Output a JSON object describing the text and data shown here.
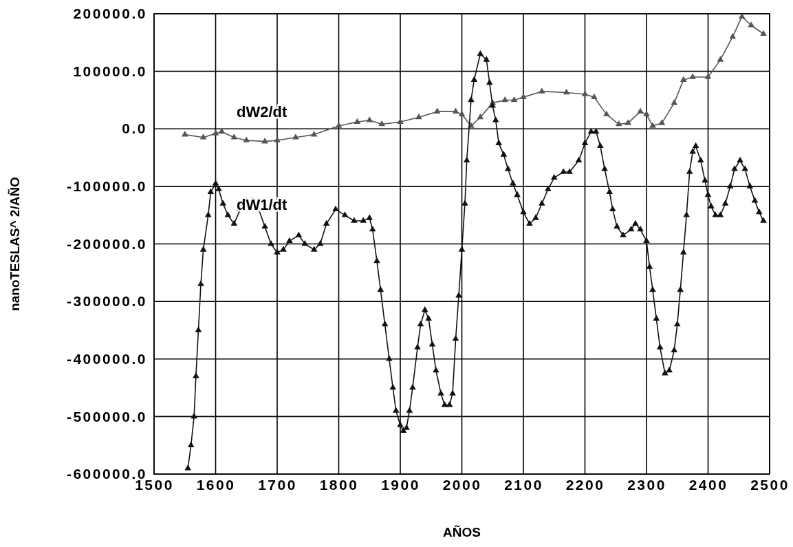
{
  "chart_data": {
    "type": "line",
    "xlabel": "AÑOS",
    "ylabel": "nanoTESLAS^ 2/AÑO",
    "xlim": [
      1500,
      2500
    ],
    "xticks": [
      1500,
      1600,
      1700,
      1800,
      1900,
      2000,
      2100,
      2200,
      2300,
      2400,
      2500
    ],
    "ylim": [
      -600000,
      200000
    ],
    "yticks": [
      {
        "value": -600000,
        "label": "-600000.0"
      },
      {
        "value": -500000,
        "label": "-500000.0"
      },
      {
        "value": -400000,
        "label": "-400000.0"
      },
      {
        "value": -300000,
        "label": "-300000.0"
      },
      {
        "value": -200000,
        "label": "-200000.0"
      },
      {
        "value": -100000,
        "label": "-100000.0"
      },
      {
        "value": 0,
        "label": "0.0"
      },
      {
        "value": 100000,
        "label": "100000.0"
      },
      {
        "value": 200000,
        "label": "200000.0"
      }
    ],
    "grid": true,
    "marker": "triangle",
    "line_style": "solid",
    "series": [
      {
        "name": "dW2/dt",
        "color": "#555555",
        "x": [
          1550,
          1580,
          1600,
          1610,
          1630,
          1650,
          1680,
          1700,
          1730,
          1760,
          1800,
          1830,
          1850,
          1870,
          1900,
          1930,
          1960,
          1990,
          2000,
          2015,
          2030,
          2050,
          2070,
          2085,
          2100,
          2130,
          2170,
          2200,
          2215,
          2235,
          2255,
          2270,
          2290,
          2300,
          2310,
          2325,
          2345,
          2360,
          2375,
          2400,
          2420,
          2440,
          2455,
          2470,
          2490
        ],
        "values": [
          -10000,
          -15000,
          -8000,
          -5000,
          -15000,
          -20000,
          -22000,
          -20000,
          -15000,
          -10000,
          5000,
          12000,
          15000,
          8000,
          12000,
          20000,
          30000,
          30000,
          25000,
          5000,
          20000,
          45000,
          50000,
          50000,
          55000,
          65000,
          63000,
          60000,
          55000,
          25000,
          8000,
          10000,
          30000,
          25000,
          5000,
          10000,
          45000,
          85000,
          90000,
          90000,
          120000,
          160000,
          195000,
          180000,
          165000
        ]
      },
      {
        "name": "dW1/dt",
        "color": "#111111",
        "x": [
          1555,
          1560,
          1565,
          1568,
          1572,
          1576,
          1580,
          1588,
          1592,
          1600,
          1605,
          1612,
          1620,
          1630,
          1640,
          1650,
          1660,
          1670,
          1680,
          1690,
          1700,
          1710,
          1720,
          1735,
          1745,
          1760,
          1770,
          1780,
          1795,
          1810,
          1825,
          1840,
          1850,
          1855,
          1862,
          1868,
          1875,
          1882,
          1888,
          1893,
          1900,
          1905,
          1910,
          1915,
          1920,
          1928,
          1933,
          1940,
          1946,
          1952,
          1958,
          1966,
          1972,
          1980,
          1985,
          1990,
          1995,
          2000,
          2005,
          2008,
          2015,
          2020,
          2030,
          2040,
          2045,
          2050,
          2055,
          2060,
          2068,
          2075,
          2083,
          2090,
          2100,
          2110,
          2120,
          2130,
          2140,
          2150,
          2165,
          2175,
          2190,
          2200,
          2210,
          2218,
          2225,
          2232,
          2240,
          2245,
          2252,
          2262,
          2275,
          2282,
          2290,
          2300,
          2305,
          2310,
          2316,
          2322,
          2330,
          2337,
          2345,
          2350,
          2355,
          2360,
          2365,
          2370,
          2375,
          2380,
          2388,
          2395,
          2400,
          2405,
          2412,
          2420,
          2428,
          2436,
          2443,
          2452,
          2460,
          2468,
          2476,
          2483,
          2490
        ],
        "values": [
          -590000,
          -550000,
          -500000,
          -430000,
          -350000,
          -270000,
          -210000,
          -150000,
          -110000,
          -95000,
          -105000,
          -130000,
          -150000,
          -165000,
          -140000,
          -125000,
          -125000,
          -140000,
          -170000,
          -200000,
          -215000,
          -210000,
          -195000,
          -185000,
          -200000,
          -210000,
          -200000,
          -165000,
          -140000,
          -150000,
          -160000,
          -160000,
          -155000,
          -175000,
          -230000,
          -280000,
          -340000,
          -400000,
          -450000,
          -490000,
          -515000,
          -525000,
          -520000,
          -490000,
          -450000,
          -380000,
          -340000,
          -315000,
          -330000,
          -375000,
          -420000,
          -460000,
          -480000,
          -480000,
          -460000,
          -365000,
          -290000,
          -210000,
          -130000,
          -55000,
          50000,
          85000,
          130000,
          120000,
          80000,
          40000,
          15000,
          -25000,
          -45000,
          -70000,
          -95000,
          -115000,
          -145000,
          -165000,
          -155000,
          -130000,
          -105000,
          -85000,
          -75000,
          -75000,
          -55000,
          -25000,
          -5000,
          -5000,
          -30000,
          -70000,
          -110000,
          -140000,
          -170000,
          -185000,
          -175000,
          -165000,
          -175000,
          -195000,
          -240000,
          -280000,
          -330000,
          -380000,
          -425000,
          -420000,
          -385000,
          -340000,
          -280000,
          -215000,
          -150000,
          -75000,
          -40000,
          -30000,
          -55000,
          -90000,
          -115000,
          -135000,
          -150000,
          -150000,
          -130000,
          -100000,
          -70000,
          -55000,
          -70000,
          -100000,
          -125000,
          -145000,
          -160000
        ]
      }
    ]
  }
}
